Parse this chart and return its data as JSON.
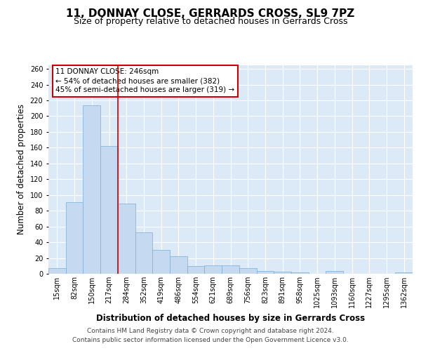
{
  "title": "11, DONNAY CLOSE, GERRARDS CROSS, SL9 7PZ",
  "subtitle": "Size of property relative to detached houses in Gerrards Cross",
  "xlabel": "Distribution of detached houses by size in Gerrards Cross",
  "ylabel": "Number of detached properties",
  "categories": [
    "15sqm",
    "82sqm",
    "150sqm",
    "217sqm",
    "284sqm",
    "352sqm",
    "419sqm",
    "486sqm",
    "554sqm",
    "621sqm",
    "689sqm",
    "756sqm",
    "823sqm",
    "891sqm",
    "958sqm",
    "1025sqm",
    "1093sqm",
    "1160sqm",
    "1227sqm",
    "1295sqm",
    "1362sqm"
  ],
  "values": [
    7,
    91,
    214,
    162,
    89,
    53,
    30,
    22,
    10,
    11,
    11,
    7,
    4,
    3,
    2,
    0,
    4,
    0,
    0,
    0,
    2
  ],
  "bar_color": "#c5d9f0",
  "bar_edge_color": "#7eadd4",
  "vline_x_index": 3.5,
  "vline_color": "#cc0000",
  "annotation_text": "11 DONNAY CLOSE: 246sqm\n← 54% of detached houses are smaller (382)\n45% of semi-detached houses are larger (319) →",
  "annotation_box_facecolor": "white",
  "annotation_box_edgecolor": "#cc0000",
  "ylim": [
    0,
    265
  ],
  "yticks": [
    0,
    20,
    40,
    60,
    80,
    100,
    120,
    140,
    160,
    180,
    200,
    220,
    240,
    260
  ],
  "footer": "Contains HM Land Registry data © Crown copyright and database right 2024.\nContains public sector information licensed under the Open Government Licence v3.0.",
  "background_color": "#dce9f7",
  "grid_color": "#ffffff",
  "title_fontsize": 11,
  "subtitle_fontsize": 9,
  "axis_label_fontsize": 8.5,
  "tick_fontsize": 7,
  "annotation_fontsize": 7.5,
  "footer_fontsize": 6.5
}
